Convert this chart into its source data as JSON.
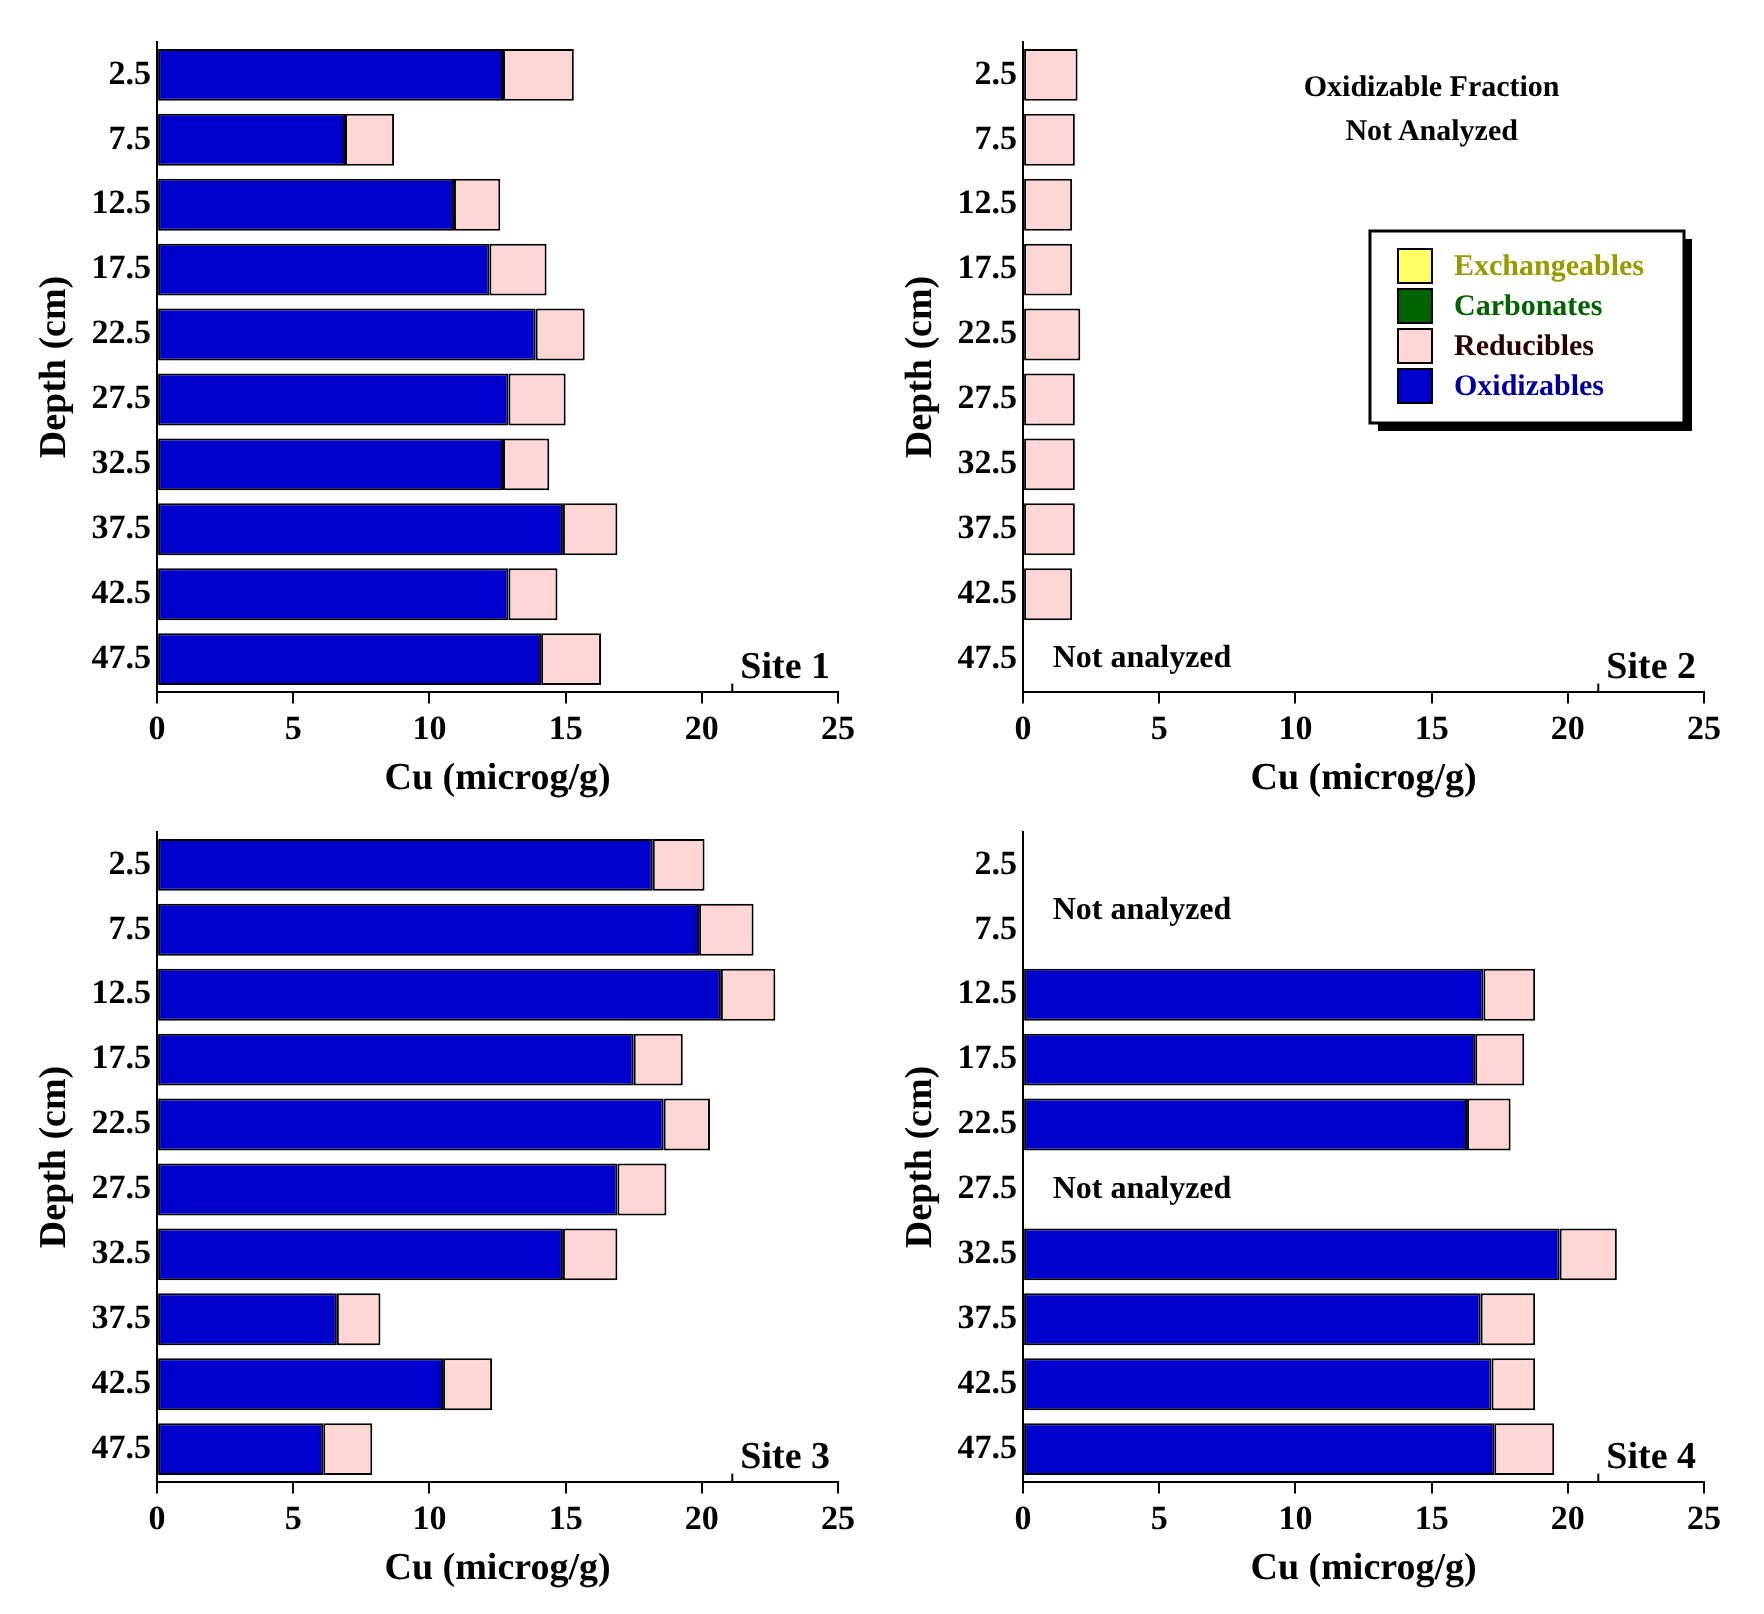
{
  "chart_data": [
    {
      "type": "bar",
      "orientation": "horizontal",
      "stacked": true,
      "xlabel": "Cu (microg/g)",
      "ylabel": "Depth (cm)",
      "categories": [
        "2.5",
        "7.5",
        "12.5",
        "17.5",
        "22.5",
        "27.5",
        "32.5",
        "37.5",
        "42.5",
        "47.5"
      ],
      "xlim": [
        0,
        25
      ],
      "xticks": [
        0,
        5,
        10,
        15,
        20,
        25
      ],
      "grid": false,
      "legend": false,
      "series": [
        {
          "color": "#0000cc",
          "values": [
            12.7,
            6.9,
            10.9,
            12.2,
            13.9,
            12.9,
            12.7,
            14.9,
            12.9,
            14.1
          ]
        },
        {
          "color": "#ffd6d6",
          "values": [
            2.6,
            1.8,
            1.7,
            2.1,
            1.8,
            2.1,
            1.7,
            2.0,
            1.8,
            2.2
          ]
        }
      ],
      "annotations": [
        "Site 1"
      ]
    },
    {
      "type": "bar",
      "orientation": "horizontal",
      "stacked": true,
      "xlabel": "Cu (microg/g)",
      "ylabel": "Depth (cm)",
      "categories": [
        "2.5",
        "7.5",
        "12.5",
        "17.5",
        "22.5",
        "27.5",
        "32.5",
        "37.5",
        "42.5",
        "47.5"
      ],
      "xlim": [
        0,
        25
      ],
      "xticks": [
        0,
        5,
        10,
        15,
        20,
        25
      ],
      "grid": false,
      "legend": "right",
      "series": [
        {
          "name": "Oxidizables",
          "color": "#0000cc",
          "values": [
            null,
            null,
            null,
            null,
            null,
            null,
            null,
            null,
            null,
            null
          ]
        },
        {
          "name": "Reducibles",
          "color": "#ffd6d6",
          "values": [
            2.0,
            1.9,
            1.8,
            1.8,
            2.1,
            1.9,
            1.9,
            1.9,
            1.8,
            null
          ]
        },
        {
          "name": "Carbonates",
          "color": "#006400",
          "values": [
            null,
            null,
            null,
            null,
            null,
            null,
            null,
            null,
            null,
            null
          ]
        },
        {
          "name": "Exchangeables",
          "color": "#ffff66",
          "values": [
            null,
            null,
            null,
            null,
            null,
            null,
            null,
            null,
            null,
            null
          ]
        }
      ],
      "annotations": [
        "Oxidizable Fraction\nNot Analyzed",
        "Not analyzed",
        "Site 2"
      ]
    },
    {
      "type": "bar",
      "orientation": "horizontal",
      "stacked": true,
      "xlabel": "Cu (microg/g)",
      "ylabel": "Depth (cm)",
      "categories": [
        "2.5",
        "7.5",
        "12.5",
        "17.5",
        "22.5",
        "27.5",
        "32.5",
        "37.5",
        "42.5",
        "47.5"
      ],
      "xlim": [
        0,
        25
      ],
      "xticks": [
        0,
        5,
        10,
        15,
        20,
        25
      ],
      "grid": false,
      "legend": false,
      "series": [
        {
          "color": "#0000cc",
          "values": [
            18.2,
            19.9,
            20.7,
            17.5,
            18.6,
            16.9,
            14.9,
            6.6,
            10.5,
            6.1
          ]
        },
        {
          "color": "#ffd6d6",
          "values": [
            1.9,
            2.0,
            2.0,
            1.8,
            1.7,
            1.8,
            2.0,
            1.6,
            1.8,
            1.8
          ]
        }
      ],
      "annotations": [
        "Site 3"
      ]
    },
    {
      "type": "bar",
      "orientation": "horizontal",
      "stacked": true,
      "xlabel": "Cu (microg/g)",
      "ylabel": "Depth (cm)",
      "categories": [
        "2.5",
        "7.5",
        "12.5",
        "17.5",
        "22.5",
        "27.5",
        "32.5",
        "37.5",
        "42.5",
        "47.5"
      ],
      "xlim": [
        0,
        25
      ],
      "xticks": [
        0,
        5,
        10,
        15,
        20,
        25
      ],
      "grid": false,
      "legend": false,
      "series": [
        {
          "color": "#0000cc",
          "values": [
            null,
            null,
            16.9,
            16.6,
            16.3,
            null,
            19.7,
            16.8,
            17.2,
            17.3
          ]
        },
        {
          "color": "#ffd6d6",
          "values": [
            null,
            null,
            1.9,
            1.8,
            1.6,
            null,
            2.1,
            2.0,
            1.6,
            2.2
          ]
        }
      ],
      "annotations": [
        "Not analyzed",
        "Not analyzed",
        "Site 4"
      ]
    }
  ]
}
